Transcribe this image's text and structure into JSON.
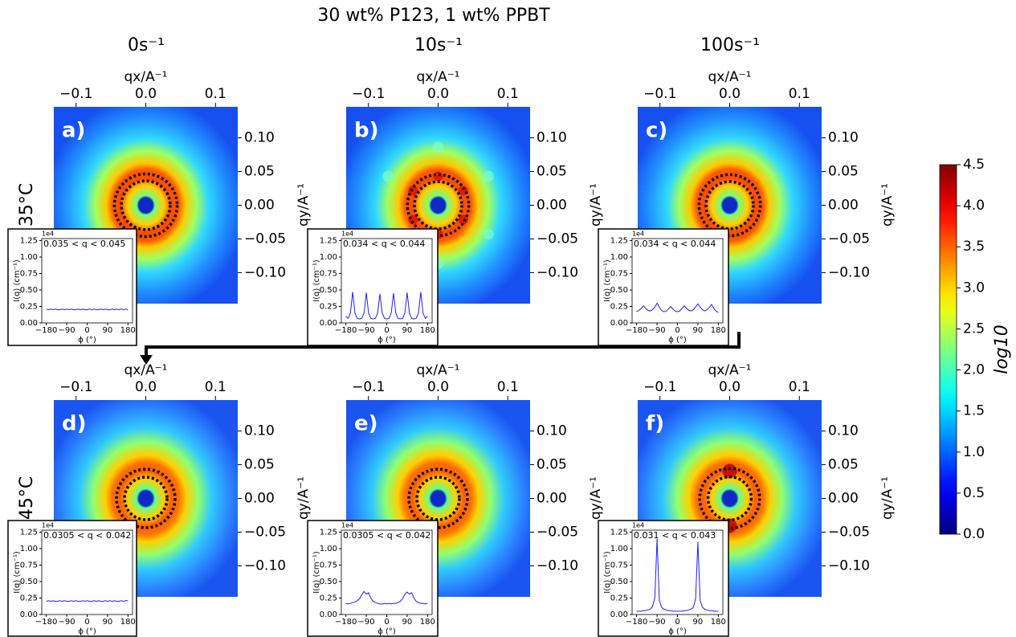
{
  "title": "30 wt% P123, 1 wt% PPBT",
  "columns": [
    "0s⁻¹",
    "10s⁻¹",
    "100s⁻¹"
  ],
  "rows": [
    "35°C",
    "45°C"
  ],
  "image_axes": {
    "xlabel": "qx/A⁻¹",
    "ylabel": "qy/A⁻¹",
    "xlim": [
      -0.132,
      0.132
    ],
    "ylim": [
      -0.146,
      0.146
    ],
    "xticks": [
      {
        "value": -0.1,
        "label": "−0.1"
      },
      {
        "value": 0,
        "label": "0.0"
      },
      0.1
    ],
    "yticks": [
      {
        "value": 0.1,
        "label": "0.10"
      },
      0.05,
      {
        "value": 0,
        "label": "0.00"
      },
      {
        "value": -0.05,
        "label": "−0.05"
      },
      {
        "value": -0.1,
        "label": "−0.10"
      }
    ]
  },
  "colorbar": {
    "label": "log10",
    "lim": [
      0,
      4.5
    ],
    "ticks": [
      {
        "value": 0,
        "label": "0.0"
      },
      0.5,
      {
        "value": 1,
        "label": "1.0"
      },
      1.5,
      {
        "value": 2,
        "label": "2.0"
      },
      2.5,
      {
        "value": 3,
        "label": "3.0"
      },
      3.5,
      {
        "value": 4,
        "label": "4.0"
      },
      4.5
    ]
  },
  "inset_axes": {
    "xlabel": "ϕ (°)",
    "ylabel": "I(q) (cm⁻¹)",
    "offset": "1e4",
    "xlim": [
      -200,
      200
    ],
    "ylim": [
      0,
      1.28
    ],
    "xticks": [
      {
        "value": -180,
        "label": "−180"
      },
      {
        "value": -90,
        "label": "−90"
      },
      0,
      90,
      180
    ],
    "yticks": [
      {
        "value": 0,
        "label": "0.00"
      },
      0.25,
      {
        "value": 0.5,
        "label": "0.50"
      },
      0.75,
      {
        "value": 1,
        "label": "1.00"
      },
      1.25
    ],
    "x": [
      -180,
      -170,
      -160,
      -150,
      -140,
      -130,
      -120,
      -110,
      -100,
      -90,
      -80,
      -70,
      -60,
      -50,
      -40,
      -30,
      -20,
      -10,
      0,
      10,
      20,
      30,
      40,
      50,
      60,
      70,
      80,
      90,
      100,
      110,
      120,
      130,
      140,
      150,
      160,
      170,
      180
    ]
  },
  "chart_data": [
    {
      "type": "line",
      "panel": "a)",
      "annotation": "0.035 < q < 0.045",
      "ring": [
        0.035,
        0.045
      ],
      "color": "#1f1fff",
      "values": [
        0.21,
        0.2,
        0.21,
        0.2,
        0.21,
        0.2,
        0.2,
        0.21,
        0.2,
        0.21,
        0.2,
        0.21,
        0.2,
        0.2,
        0.21,
        0.2,
        0.21,
        0.2,
        0.2,
        0.21,
        0.2,
        0.21,
        0.2,
        0.2,
        0.21,
        0.2,
        0.21,
        0.2,
        0.2,
        0.21,
        0.2,
        0.21,
        0.2,
        0.21,
        0.2,
        0.21,
        0.2
      ]
    },
    {
      "type": "line",
      "panel": "b)",
      "annotation": "0.034 < q < 0.044",
      "ring": [
        0.034,
        0.044
      ],
      "color": "#1f1fff",
      "values": [
        0.1,
        0.07,
        0.15,
        0.47,
        0.15,
        0.07,
        0.06,
        0.07,
        0.15,
        0.46,
        0.15,
        0.07,
        0.06,
        0.07,
        0.15,
        0.44,
        0.15,
        0.07,
        0.06,
        0.07,
        0.15,
        0.45,
        0.15,
        0.07,
        0.06,
        0.07,
        0.15,
        0.46,
        0.15,
        0.07,
        0.06,
        0.07,
        0.15,
        0.47,
        0.15,
        0.07,
        0.1
      ]
    },
    {
      "type": "line",
      "panel": "c)",
      "annotation": "0.034 < q < 0.044",
      "ring": [
        0.034,
        0.044
      ],
      "color": "#1f1fff",
      "values": [
        0.17,
        0.19,
        0.22,
        0.26,
        0.22,
        0.19,
        0.18,
        0.2,
        0.24,
        0.3,
        0.24,
        0.19,
        0.17,
        0.18,
        0.21,
        0.25,
        0.21,
        0.18,
        0.17,
        0.18,
        0.22,
        0.26,
        0.22,
        0.19,
        0.18,
        0.2,
        0.24,
        0.29,
        0.24,
        0.2,
        0.18,
        0.2,
        0.23,
        0.28,
        0.22,
        0.18,
        0.16
      ]
    },
    {
      "type": "line",
      "panel": "d)",
      "annotation": "0.0305 < q < 0.042",
      "ring": [
        0.0305,
        0.042
      ],
      "color": "#1f1fff",
      "values": [
        0.2,
        0.21,
        0.2,
        0.21,
        0.2,
        0.2,
        0.21,
        0.2,
        0.21,
        0.2,
        0.2,
        0.21,
        0.2,
        0.21,
        0.2,
        0.2,
        0.21,
        0.2,
        0.21,
        0.2,
        0.2,
        0.21,
        0.2,
        0.21,
        0.2,
        0.2,
        0.21,
        0.2,
        0.21,
        0.2,
        0.21,
        0.2,
        0.2,
        0.21,
        0.2,
        0.21,
        0.21
      ]
    },
    {
      "type": "line",
      "panel": "e)",
      "annotation": "0.0305 < q < 0.042",
      "ring": [
        0.0305,
        0.042
      ],
      "color": "#1f1fff",
      "values": [
        0.17,
        0.16,
        0.17,
        0.18,
        0.19,
        0.21,
        0.24,
        0.3,
        0.35,
        0.31,
        0.33,
        0.25,
        0.2,
        0.18,
        0.17,
        0.16,
        0.16,
        0.17,
        0.16,
        0.17,
        0.16,
        0.17,
        0.17,
        0.18,
        0.2,
        0.24,
        0.31,
        0.34,
        0.31,
        0.33,
        0.25,
        0.2,
        0.18,
        0.17,
        0.17,
        0.16,
        0.17
      ]
    },
    {
      "type": "line",
      "panel": "f)",
      "annotation": "0.031 < q < 0.043",
      "ring": [
        0.031,
        0.043
      ],
      "color": "#1f1fff",
      "values": [
        0.05,
        0.05,
        0.05,
        0.06,
        0.06,
        0.07,
        0.08,
        0.12,
        0.25,
        1.15,
        0.22,
        0.11,
        0.08,
        0.07,
        0.06,
        0.06,
        0.05,
        0.05,
        0.05,
        0.05,
        0.05,
        0.06,
        0.06,
        0.07,
        0.08,
        0.11,
        0.24,
        1.1,
        0.21,
        0.11,
        0.08,
        0.07,
        0.06,
        0.06,
        0.05,
        0.05,
        0.05
      ]
    }
  ]
}
